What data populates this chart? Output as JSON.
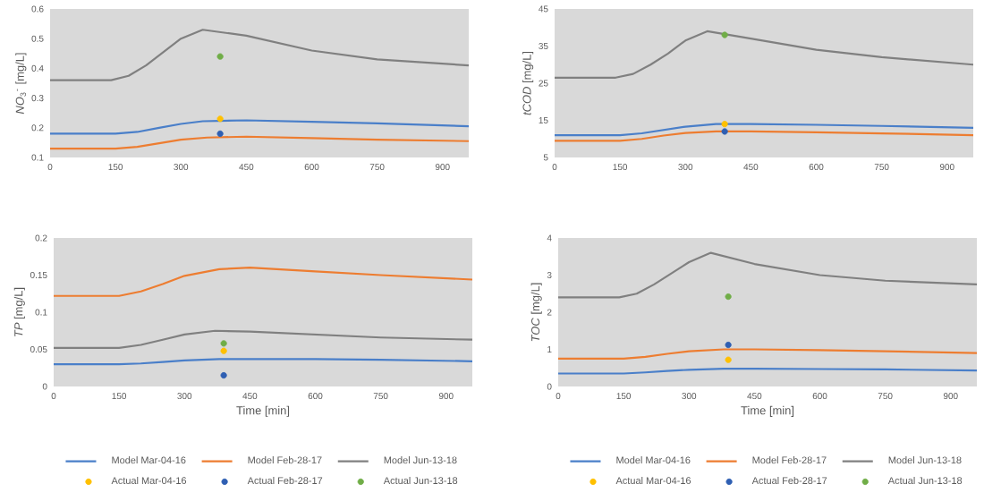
{
  "chart_data": [
    {
      "type": "line",
      "ylabel": "*NO*$_{3}$$^{-}$ [mg/L]",
      "xlim": [
        0,
        960
      ],
      "xticks": [
        0,
        150,
        300,
        450,
        600,
        750,
        900
      ],
      "ylim": [
        0.1,
        0.6
      ],
      "yticks": [
        0.1,
        0.2,
        0.3,
        0.4,
        0.5,
        0.6
      ],
      "grid": false,
      "legend": false,
      "series": [
        {
          "color": "#4a7fc9",
          "x": [
            0,
            150,
            200,
            250,
            300,
            350,
            450,
            600,
            750,
            960
          ],
          "values": [
            0.18,
            0.18,
            0.186,
            0.2,
            0.213,
            0.222,
            0.225,
            0.22,
            0.215,
            0.205
          ]
        },
        {
          "color": "#ed7d31",
          "x": [
            0,
            150,
            200,
            250,
            300,
            360,
            450,
            600,
            750,
            960
          ],
          "values": [
            0.13,
            0.13,
            0.136,
            0.148,
            0.16,
            0.167,
            0.17,
            0.165,
            0.16,
            0.155
          ]
        },
        {
          "color": "#808080",
          "x": [
            0,
            140,
            180,
            220,
            260,
            300,
            350,
            450,
            600,
            750,
            960
          ],
          "values": [
            0.36,
            0.36,
            0.375,
            0.41,
            0.455,
            0.5,
            0.53,
            0.51,
            0.46,
            0.43,
            0.41
          ]
        },
        {
          "type": "scatter",
          "marker": "circle",
          "color": "#ffc000",
          "x": [
            390
          ],
          "values": [
            0.23
          ]
        },
        {
          "type": "scatter",
          "marker": "circle",
          "color": "#2f5fb3",
          "x": [
            390
          ],
          "values": [
            0.18
          ]
        },
        {
          "type": "scatter",
          "marker": "circle",
          "color": "#70ad47",
          "x": [
            390
          ],
          "values": [
            0.44
          ]
        }
      ]
    },
    {
      "type": "line",
      "ylabel": "*tCOD* [mg/L]",
      "xlim": [
        0,
        960
      ],
      "xticks": [
        0,
        150,
        300,
        450,
        600,
        750,
        900
      ],
      "ylim": [
        5,
        45
      ],
      "yticks": [
        5,
        15,
        25,
        35,
        45
      ],
      "grid": false,
      "legend": false,
      "series": [
        {
          "color": "#4a7fc9",
          "x": [
            0,
            150,
            200,
            250,
            300,
            370,
            450,
            600,
            750,
            960
          ],
          "values": [
            11,
            11,
            11.5,
            12.4,
            13.3,
            14,
            14,
            13.8,
            13.5,
            13
          ]
        },
        {
          "color": "#ed7d31",
          "x": [
            0,
            150,
            200,
            250,
            300,
            370,
            450,
            600,
            750,
            960
          ],
          "values": [
            9.5,
            9.5,
            10,
            10.9,
            11.6,
            12,
            12,
            11.8,
            11.5,
            11
          ]
        },
        {
          "color": "#808080",
          "x": [
            0,
            140,
            180,
            220,
            260,
            300,
            350,
            450,
            600,
            750,
            960
          ],
          "values": [
            26.5,
            26.5,
            27.5,
            30,
            33,
            36.5,
            39,
            37,
            34,
            32,
            30
          ]
        },
        {
          "type": "scatter",
          "marker": "circle",
          "color": "#ffc000",
          "x": [
            390
          ],
          "values": [
            14
          ]
        },
        {
          "type": "scatter",
          "marker": "circle",
          "color": "#2f5fb3",
          "x": [
            390
          ],
          "values": [
            12
          ]
        },
        {
          "type": "scatter",
          "marker": "circle",
          "color": "#70ad47",
          "x": [
            390
          ],
          "values": [
            38
          ]
        }
      ]
    },
    {
      "type": "line",
      "xlabel": "Time  [min]",
      "ylabel": "*TP* [mg/L]",
      "xlim": [
        0,
        960
      ],
      "xticks": [
        0,
        150,
        300,
        450,
        600,
        750,
        900
      ],
      "ylim": [
        0,
        0.2
      ],
      "yticks": [
        0,
        0.05,
        0.1,
        0.15,
        0.2
      ],
      "grid": false,
      "legend": "bottom",
      "series": [
        {
          "name": "Model Mar-04-16",
          "color": "#4a7fc9",
          "x": [
            0,
            150,
            200,
            250,
            300,
            380,
            450,
            600,
            750,
            960
          ],
          "values": [
            0.03,
            0.03,
            0.031,
            0.033,
            0.035,
            0.037,
            0.037,
            0.037,
            0.036,
            0.034
          ]
        },
        {
          "name": "Model Feb-28-17",
          "color": "#ed7d31",
          "x": [
            0,
            150,
            200,
            250,
            300,
            380,
            450,
            600,
            750,
            960
          ],
          "values": [
            0.122,
            0.122,
            0.128,
            0.138,
            0.149,
            0.158,
            0.16,
            0.155,
            0.15,
            0.144
          ]
        },
        {
          "name": "Model Jun-13-18",
          "color": "#808080",
          "x": [
            0,
            150,
            200,
            250,
            300,
            370,
            450,
            600,
            750,
            960
          ],
          "values": [
            0.052,
            0.052,
            0.056,
            0.063,
            0.07,
            0.075,
            0.074,
            0.07,
            0.066,
            0.063
          ]
        },
        {
          "type": "scatter",
          "marker": "circle",
          "name": "Actual Mar-04-16",
          "color": "#ffc000",
          "x": [
            390
          ],
          "values": [
            0.048
          ]
        },
        {
          "type": "scatter",
          "marker": "circle",
          "name": "Actual Feb-28-17",
          "color": "#2f5fb3",
          "x": [
            390
          ],
          "values": [
            0.015
          ]
        },
        {
          "type": "scatter",
          "marker": "circle",
          "name": "Actual Jun-13-18",
          "color": "#70ad47",
          "x": [
            390
          ],
          "values": [
            0.058
          ]
        }
      ]
    },
    {
      "type": "line",
      "xlabel": "Time  [min]",
      "ylabel": "*TOC* [mg/L]",
      "xlim": [
        0,
        960
      ],
      "xticks": [
        0,
        150,
        300,
        450,
        600,
        750,
        900
      ],
      "ylim": [
        0,
        4
      ],
      "yticks": [
        0,
        1,
        2,
        3,
        4
      ],
      "grid": false,
      "legend": "bottom",
      "series": [
        {
          "name": "Model Mar-04-16",
          "color": "#4a7fc9",
          "x": [
            0,
            150,
            200,
            250,
            300,
            380,
            450,
            600,
            750,
            960
          ],
          "values": [
            0.35,
            0.35,
            0.38,
            0.42,
            0.45,
            0.48,
            0.48,
            0.47,
            0.46,
            0.43
          ]
        },
        {
          "name": "Model Feb-28-17",
          "color": "#ed7d31",
          "x": [
            0,
            150,
            200,
            250,
            300,
            380,
            450,
            600,
            750,
            960
          ],
          "values": [
            0.75,
            0.75,
            0.8,
            0.88,
            0.95,
            1.0,
            1.0,
            0.98,
            0.95,
            0.9
          ]
        },
        {
          "name": "Model Jun-13-18",
          "color": "#808080",
          "x": [
            0,
            140,
            180,
            220,
            260,
            300,
            350,
            450,
            600,
            750,
            960
          ],
          "values": [
            2.4,
            2.4,
            2.5,
            2.75,
            3.05,
            3.35,
            3.6,
            3.3,
            3.0,
            2.85,
            2.75
          ]
        },
        {
          "type": "scatter",
          "marker": "circle",
          "name": "Actual Mar-04-16",
          "color": "#ffc000",
          "x": [
            390
          ],
          "values": [
            0.72
          ]
        },
        {
          "type": "scatter",
          "marker": "circle",
          "name": "Actual Feb-28-17",
          "color": "#2f5fb3",
          "x": [
            390
          ],
          "values": [
            1.12
          ]
        },
        {
          "type": "scatter",
          "marker": "circle",
          "name": "Actual Jun-13-18",
          "color": "#70ad47",
          "x": [
            390
          ],
          "values": [
            2.42
          ]
        }
      ]
    }
  ]
}
